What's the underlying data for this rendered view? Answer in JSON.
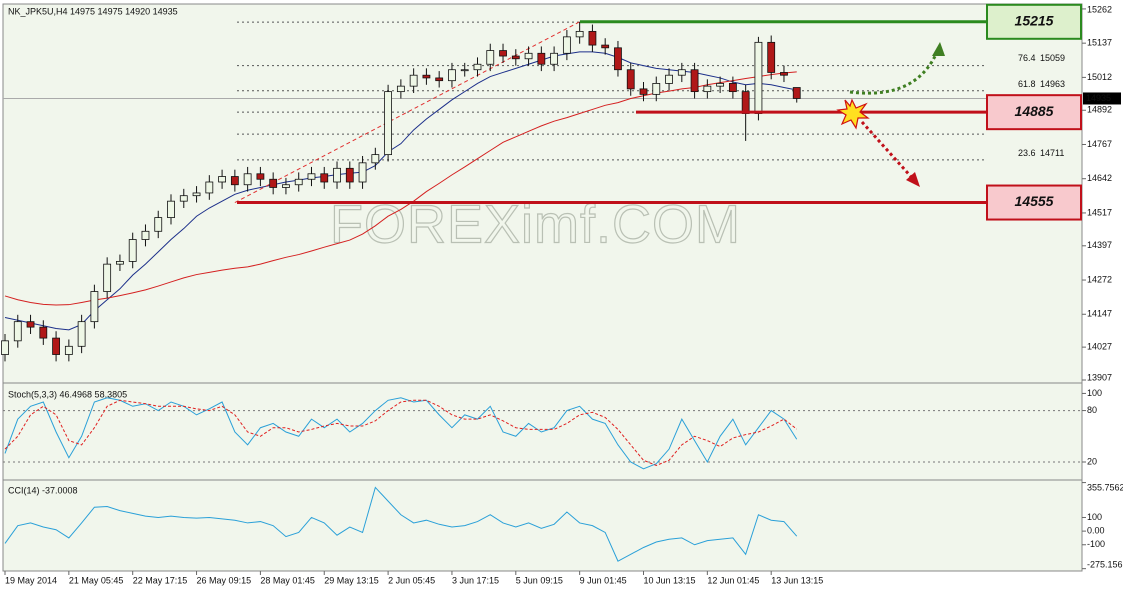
{
  "chart_data": [
    {
      "type": "candlestick",
      "title": "NK_JPK5U,H4  14975 14975 14920 14935",
      "watermark": "FOREXimf.COM",
      "categories": [
        "19 May 2014",
        null,
        null,
        null,
        null,
        "21 May 05:45",
        null,
        null,
        null,
        null,
        "22 May 17:15",
        null,
        null,
        null,
        null,
        "26 May 09:15",
        null,
        null,
        null,
        null,
        "28 May 01:45",
        null,
        null,
        null,
        null,
        "29 May 13:15",
        null,
        null,
        null,
        null,
        "2 Jun 05:45",
        null,
        null,
        null,
        null,
        "3 Jun 17:15",
        null,
        null,
        null,
        null,
        "5 Jun 09:15",
        null,
        null,
        null,
        null,
        "9 Jun 01:45",
        null,
        null,
        null,
        null,
        "10 Jun 13:15",
        null,
        null,
        null,
        null,
        "12 Jun 01:45",
        null,
        null,
        null,
        null,
        "13 Jun 13:15",
        null,
        null
      ],
      "open": [
        14000,
        14050,
        14120,
        14100,
        14060,
        14000,
        14030,
        14120,
        14230,
        14330,
        14340,
        14420,
        14450,
        14500,
        14560,
        14580,
        14590,
        14630,
        14650,
        14620,
        14660,
        14640,
        14610,
        14620,
        14640,
        14660,
        14630,
        14680,
        14630,
        14700,
        14730,
        14960,
        14980,
        15020,
        15010,
        15000,
        15040,
        15040,
        15060,
        15110,
        15090,
        15080,
        15100,
        15060,
        15100,
        15160,
        15180,
        15130,
        15120,
        15040,
        14970,
        14950,
        14990,
        15020,
        15040,
        14960,
        14980,
        14990,
        14960,
        14880,
        15140,
        15030,
        14975
      ],
      "high": [
        14075,
        14145,
        14145,
        14125,
        14085,
        14055,
        14145,
        14255,
        14355,
        14365,
        14445,
        14475,
        14525,
        14585,
        14605,
        14615,
        14655,
        14675,
        14675,
        14685,
        14685,
        14665,
        14645,
        14665,
        14685,
        14685,
        14705,
        14705,
        14725,
        14755,
        14985,
        15005,
        15045,
        15045,
        15035,
        15065,
        15065,
        15085,
        15135,
        15135,
        15115,
        15125,
        15125,
        15125,
        15185,
        15215,
        15205,
        15155,
        15145,
        15065,
        14995,
        15015,
        15045,
        15065,
        15065,
        15005,
        15015,
        15015,
        14985,
        15160,
        15165,
        15055,
        14975
      ],
      "low": [
        13975,
        14025,
        14075,
        14035,
        13975,
        13975,
        14005,
        14095,
        14205,
        14305,
        14315,
        14395,
        14425,
        14475,
        14535,
        14555,
        14565,
        14605,
        14595,
        14595,
        14615,
        14585,
        14585,
        14595,
        14615,
        14605,
        14605,
        14605,
        14605,
        14675,
        14705,
        14935,
        14955,
        14985,
        14975,
        14975,
        15015,
        15015,
        15035,
        15065,
        15055,
        15055,
        15035,
        15035,
        15075,
        15135,
        15105,
        15095,
        15015,
        14945,
        14925,
        14925,
        14965,
        14995,
        14935,
        14935,
        14955,
        14935,
        14780,
        14855,
        15005,
        14995,
        14920
      ],
      "close": [
        14050,
        14120,
        14100,
        14060,
        14000,
        14030,
        14120,
        14230,
        14330,
        14340,
        14420,
        14450,
        14500,
        14560,
        14580,
        14590,
        14630,
        14650,
        14620,
        14660,
        14640,
        14610,
        14620,
        14640,
        14660,
        14630,
        14680,
        14630,
        14700,
        14730,
        14960,
        14980,
        15020,
        15010,
        15000,
        15040,
        15040,
        15060,
        15110,
        15090,
        15080,
        15100,
        15060,
        15100,
        15160,
        15180,
        15130,
        15120,
        15040,
        14970,
        14950,
        14990,
        15020,
        15040,
        14960,
        14980,
        14990,
        14960,
        14880,
        15140,
        15030,
        15020,
        14935
      ],
      "up_color": "#eef7e6",
      "down_color": "#b01818",
      "overlays": [
        {
          "color": "#1c2f8a",
          "values": [
            14135,
            14125,
            14115,
            14105,
            14095,
            14090,
            14110,
            14160,
            14200,
            14240,
            14290,
            14330,
            14375,
            14420,
            14460,
            14505,
            14535,
            14560,
            14585,
            14600,
            14610,
            14620,
            14630,
            14637,
            14645,
            14650,
            14657,
            14662,
            14666,
            14690,
            14740,
            14770,
            14820,
            14860,
            14895,
            14930,
            14960,
            14990,
            15015,
            15030,
            15045,
            15060,
            15075,
            15090,
            15098,
            15105,
            15105,
            15100,
            15085,
            15065,
            15055,
            15045,
            15040,
            15035,
            15030,
            15020,
            15010,
            14995,
            14985,
            14990,
            14985,
            14975,
            14966
          ]
        },
        {
          "color": "#d42020",
          "values": [
            14214,
            14200,
            14190,
            14183,
            14181,
            14182,
            14190,
            14199,
            14206,
            14215,
            14225,
            14236,
            14250,
            14265,
            14280,
            14292,
            14300,
            14308,
            14315,
            14320,
            14330,
            14343,
            14355,
            14365,
            14378,
            14392,
            14405,
            14418,
            14440,
            14470,
            14505,
            14530,
            14560,
            14595,
            14625,
            14656,
            14685,
            14715,
            14745,
            14775,
            14795,
            14815,
            14835,
            14852,
            14865,
            14880,
            14895,
            14910,
            14920,
            14935,
            14945,
            14955,
            14962,
            14970,
            14975,
            14985,
            14993,
            15000,
            15008,
            15015,
            15022,
            15028,
            15032
          ]
        }
      ],
      "trendline": {
        "x": [
          18,
          45
        ],
        "y": [
          14555,
          15215
        ],
        "color": "#e03030"
      },
      "dotted_lines": [
        15214,
        15055,
        14963,
        14885,
        14805,
        14711,
        14555
      ],
      "fib": [
        {
          "ratio": 76.4,
          "price": 15059
        },
        {
          "ratio": 61.8,
          "price": 14963
        },
        {
          "ratio": 23.6,
          "price": 14711
        }
      ],
      "levels": [
        {
          "value": 15215,
          "color": "#2a8a1e",
          "box_color": "#ddf0cc"
        },
        {
          "value": 14885,
          "color": "#c0101a",
          "box_color": "#f8c9cd"
        },
        {
          "value": 14555,
          "color": "#c0101a",
          "box_color": "#f8c9cd"
        }
      ],
      "last_price": 14935,
      "ylim": [
        13896,
        15280
      ],
      "yticks": [
        15262,
        15137,
        15012,
        14892,
        14767,
        14642,
        14517,
        14397,
        14272,
        14147,
        14027,
        13907
      ]
    },
    {
      "type": "line",
      "title": "Stoch(5,3,3) 46.4968 58.3805",
      "series": [
        {
          "color": "#2aa0d8",
          "values": [
            30,
            70,
            85,
            90,
            55,
            25,
            50,
            90,
            95,
            92,
            85,
            88,
            80,
            90,
            85,
            75,
            82,
            90,
            55,
            40,
            60,
            65,
            55,
            50,
            70,
            60,
            70,
            55,
            65,
            80,
            92,
            95,
            90,
            92,
            75,
            60,
            75,
            70,
            85,
            55,
            50,
            65,
            55,
            60,
            80,
            85,
            70,
            65,
            40,
            20,
            12,
            18,
            35,
            70,
            45,
            20,
            50,
            70,
            40,
            60,
            80,
            70,
            46.5
          ]
        },
        {
          "color": "#e02020",
          "dashed": true,
          "values": [
            35,
            50,
            75,
            85,
            75,
            45,
            40,
            60,
            85,
            92,
            90,
            88,
            85,
            85,
            85,
            82,
            80,
            85,
            75,
            55,
            50,
            60,
            60,
            55,
            58,
            62,
            65,
            62,
            62,
            68,
            80,
            90,
            92,
            92,
            85,
            75,
            70,
            70,
            75,
            68,
            60,
            58,
            58,
            58,
            65,
            75,
            78,
            72,
            58,
            40,
            22,
            16,
            22,
            40,
            50,
            45,
            38,
            48,
            52,
            55,
            62,
            70,
            58.4
          ]
        }
      ],
      "levels": [
        80,
        20
      ],
      "ylim": [
        -1,
        111
      ],
      "yticks": [
        100,
        80,
        20
      ]
    },
    {
      "type": "line",
      "title": "CCI(14) -37.0008",
      "series": [
        {
          "color": "#2aa0d8",
          "values": [
            -90,
            40,
            60,
            30,
            10,
            -50,
            60,
            175,
            180,
            150,
            130,
            110,
            100,
            110,
            100,
            95,
            100,
            90,
            80,
            60,
            70,
            40,
            -40,
            -10,
            100,
            60,
            -30,
            30,
            -10,
            320,
            220,
            120,
            60,
            80,
            50,
            30,
            40,
            70,
            120,
            60,
            30,
            60,
            20,
            50,
            140,
            60,
            40,
            -10,
            -220,
            -170,
            -120,
            -80,
            -60,
            -50,
            -100,
            -70,
            -60,
            -50,
            -170,
            120,
            80,
            70,
            -37
          ]
        }
      ],
      "ylim": [
        -285,
        360
      ],
      "yticks": [
        355.7562,
        100,
        {
          "value": 0,
          "label": "0.00"
        },
        -100,
        -275.156
      ]
    }
  ]
}
